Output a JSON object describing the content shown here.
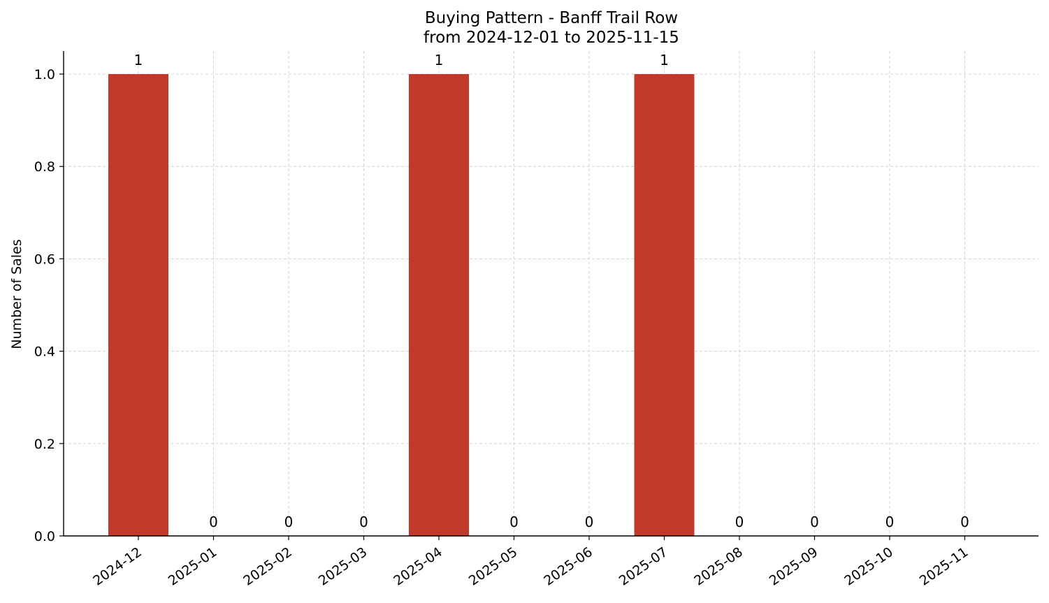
{
  "chart_data": {
    "type": "bar",
    "title": "Buying Pattern - Banff Trail Row",
    "subtitle": "from 2024-12-01 to 2025-11-15",
    "xlabel": "",
    "ylabel": "Number of Sales",
    "categories": [
      "2024-12",
      "2025-01",
      "2025-02",
      "2025-03",
      "2025-04",
      "2025-05",
      "2025-06",
      "2025-07",
      "2025-08",
      "2025-09",
      "2025-10",
      "2025-11"
    ],
    "values": [
      1,
      0,
      0,
      0,
      1,
      0,
      0,
      1,
      0,
      0,
      0,
      0
    ],
    "value_labels": [
      "1",
      "0",
      "0",
      "0",
      "1",
      "0",
      "0",
      "1",
      "0",
      "0",
      "0",
      "0"
    ],
    "y_ticks": [
      "0.0",
      "0.2",
      "0.4",
      "0.6",
      "0.8",
      "1.0"
    ],
    "ylim": [
      0,
      1.05
    ],
    "grid": true,
    "bar_color": "#c0392b"
  }
}
